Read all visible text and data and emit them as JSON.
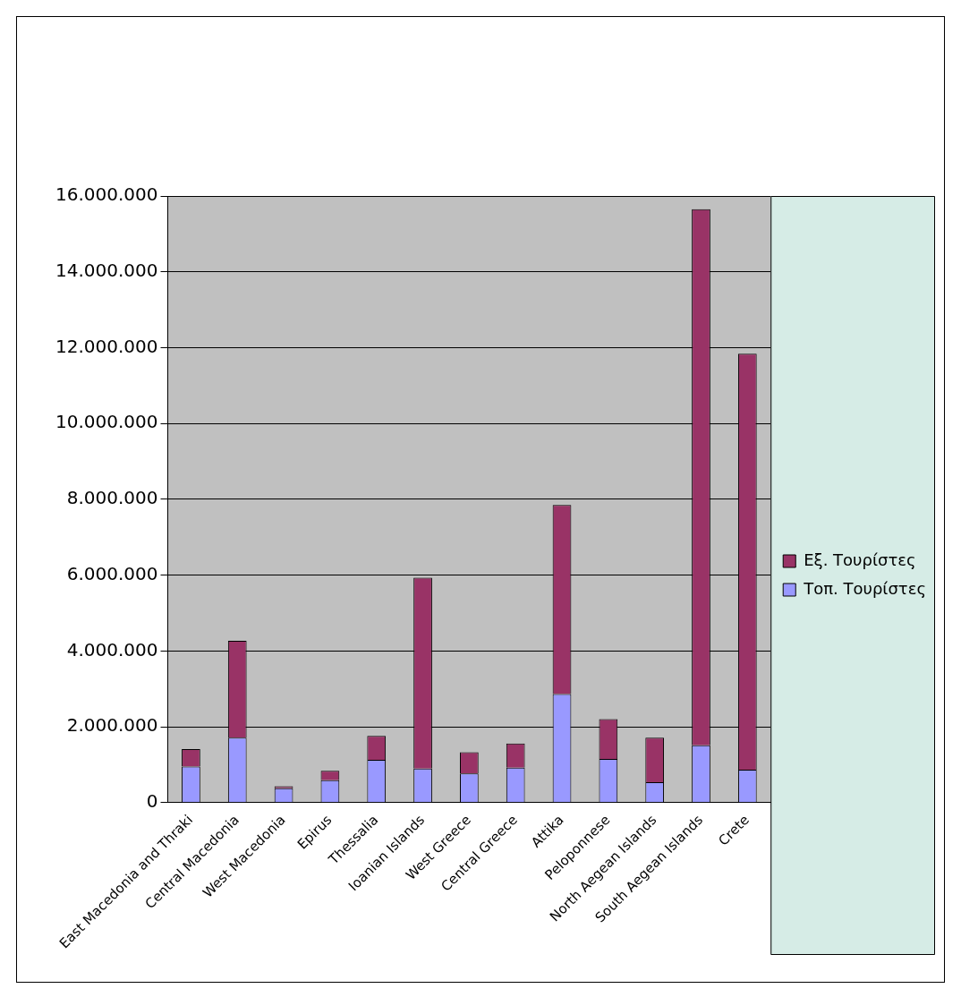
{
  "chart_data": {
    "type": "bar",
    "stacked": true,
    "categories": [
      "East Macedonia and Thraki",
      "Central Macedonia",
      "West Macedonia",
      "Epirus",
      "Thessalia",
      "Ioanian Islands",
      "West Greece",
      "Central Greece",
      "Attika",
      "Peloponnese",
      "North Aegean Islands",
      "South Aegean Islands",
      "Crete"
    ],
    "series": [
      {
        "name": "Τοπ. Τουρίστες",
        "color": "#9999ff",
        "values": [
          950000,
          1710000,
          380000,
          590000,
          1130000,
          900000,
          770000,
          920000,
          2860000,
          1150000,
          540000,
          1510000,
          870000
        ]
      },
      {
        "name": "Εξ. Τουρίστες",
        "color": "#993366",
        "values": [
          460000,
          2560000,
          50000,
          250000,
          630000,
          5030000,
          560000,
          640000,
          4990000,
          1050000,
          1170000,
          14140000,
          10970000
        ]
      }
    ],
    "ylim": [
      0,
      16000000
    ],
    "yticks": [
      {
        "value": 0,
        "label": "0"
      },
      {
        "value": 2000000,
        "label": "2.000.000"
      },
      {
        "value": 4000000,
        "label": "4.000.000"
      },
      {
        "value": 6000000,
        "label": "6.000.000"
      },
      {
        "value": 8000000,
        "label": "8.000.000"
      },
      {
        "value": 10000000,
        "label": "10.000.000"
      },
      {
        "value": 12000000,
        "label": "12.000.000"
      },
      {
        "value": 14000000,
        "label": "14.000.000"
      },
      {
        "value": 16000000,
        "label": "16.000.000"
      }
    ],
    "grid": "y",
    "legend": "right"
  }
}
